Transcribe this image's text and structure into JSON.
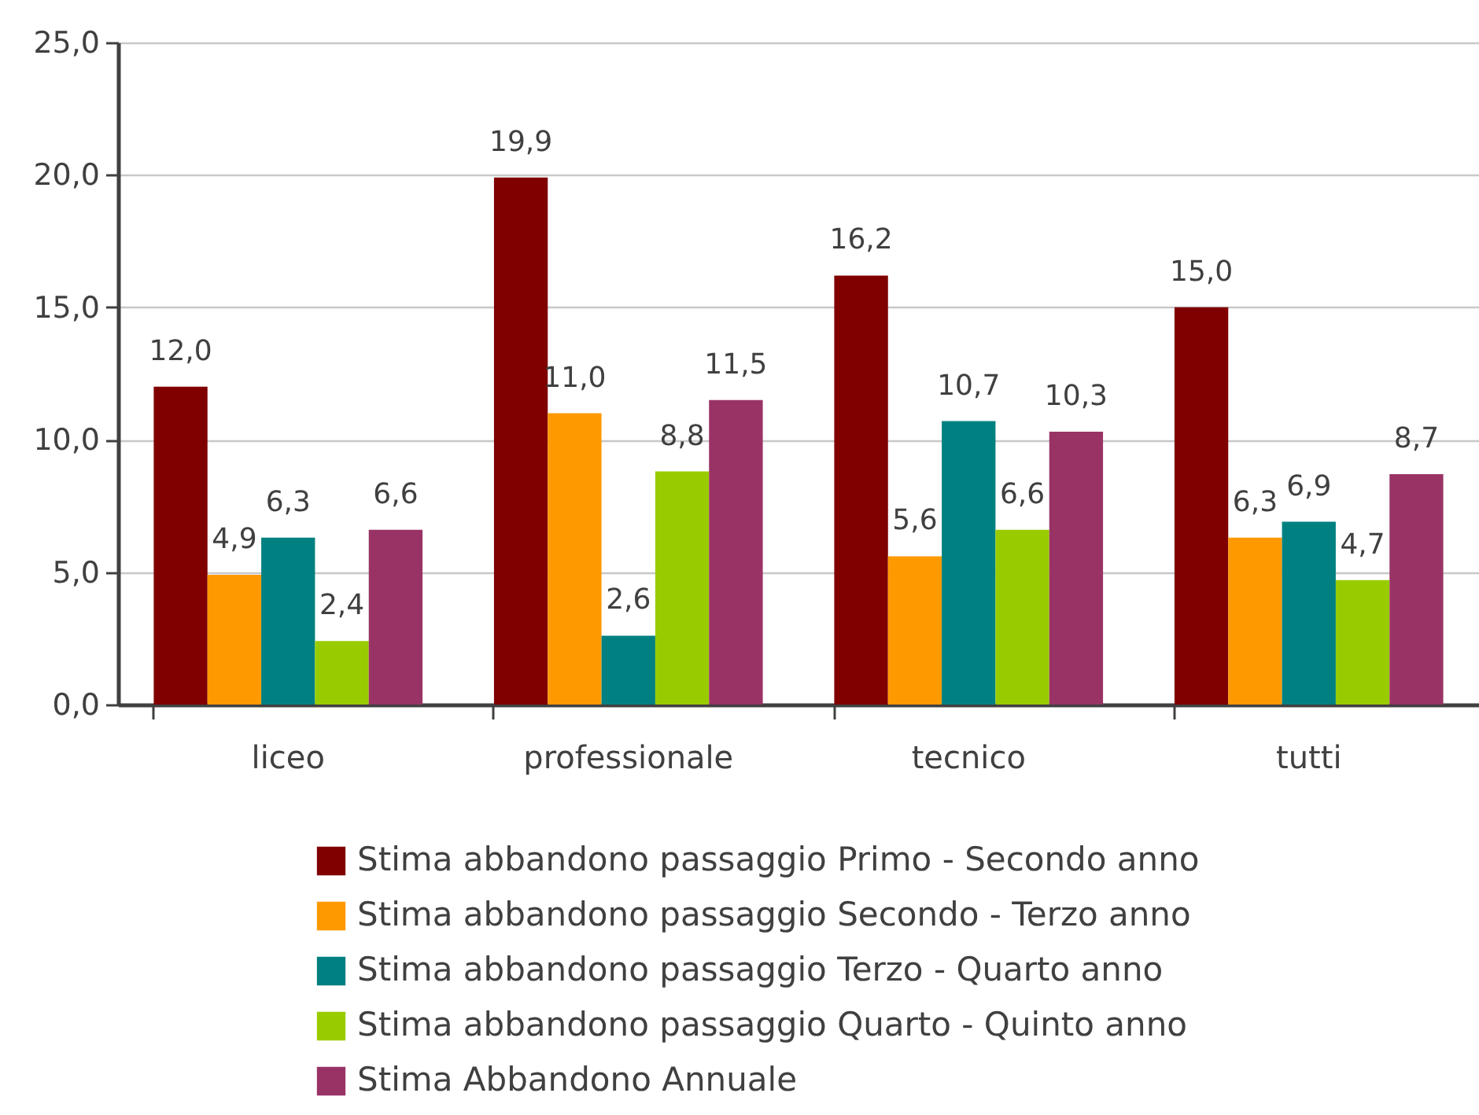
{
  "chart_data": {
    "type": "bar",
    "categories": [
      "liceo",
      "professionale",
      "tecnico",
      "tutti"
    ],
    "series": [
      {
        "name": "Stima abbandono passaggio Primo - Secondo anno",
        "color": "#800000",
        "values": [
          12.0,
          19.9,
          16.2,
          15.0
        ],
        "value_labels": [
          "12,0",
          "19,9",
          "16,2",
          "15,0"
        ]
      },
      {
        "name": "Stima abbandono passaggio Secondo - Terzo anno",
        "color": "#ff9900",
        "values": [
          4.9,
          11.0,
          5.6,
          6.3
        ],
        "value_labels": [
          "4,9",
          "11,0",
          "5,6",
          "6,3"
        ]
      },
      {
        "name": "Stima abbandono passaggio Terzo - Quarto anno",
        "color": "#008080",
        "values": [
          6.3,
          2.6,
          10.7,
          6.9
        ],
        "value_labels": [
          "6,3",
          "2,6",
          "10,7",
          "6,9"
        ]
      },
      {
        "name": "Stima abbandono passaggio Quarto - Quinto anno",
        "color": "#99cc00",
        "values": [
          2.4,
          8.8,
          6.6,
          4.7
        ],
        "value_labels": [
          "2,4",
          "8,8",
          "6,6",
          "4,7"
        ]
      },
      {
        "name": "Stima Abbandono Annuale",
        "color": "#993366",
        "values": [
          6.6,
          11.5,
          10.3,
          8.7
        ],
        "value_labels": [
          "6,6",
          "11,5",
          "10,3",
          "8,7"
        ]
      }
    ],
    "ylim": [
      0,
      25
    ],
    "yticks": [
      {
        "value": 0,
        "label": "0,0"
      },
      {
        "value": 5,
        "label": "5,0"
      },
      {
        "value": 10,
        "label": "10,0"
      },
      {
        "value": 15,
        "label": "15,0"
      },
      {
        "value": 20,
        "label": "20,0"
      },
      {
        "value": 25,
        "label": "25,0"
      }
    ],
    "grid": "y",
    "legend": "bottom"
  }
}
